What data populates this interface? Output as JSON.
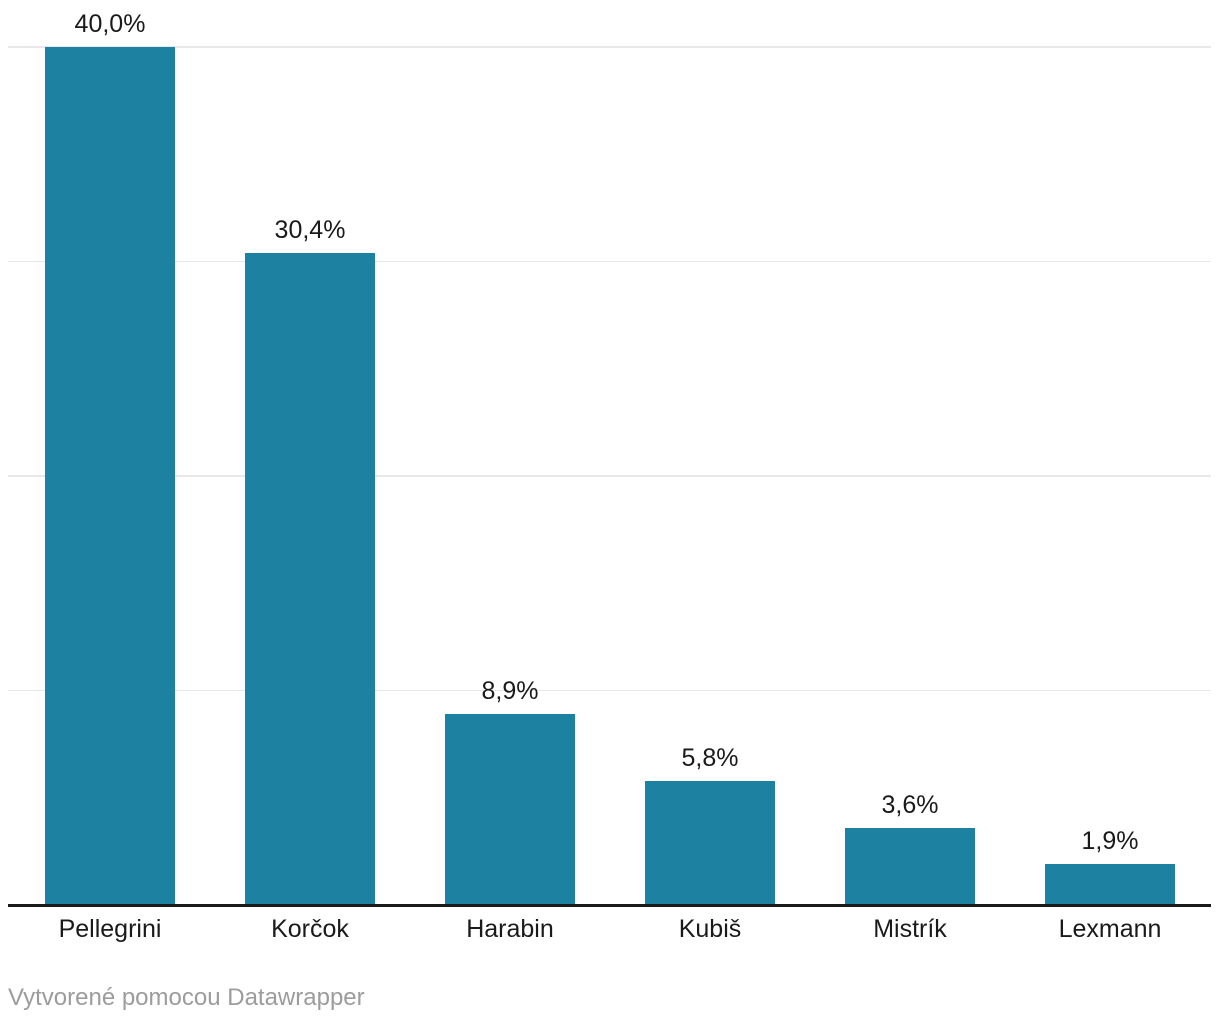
{
  "chart_data": {
    "type": "bar",
    "orientation": "vertical",
    "categories": [
      "Pellegrini",
      "Korčok",
      "Harabin",
      "Kubiš",
      "Mistrík",
      "Lexmann"
    ],
    "values": [
      40.0,
      30.4,
      8.9,
      5.8,
      3.6,
      1.9
    ],
    "value_labels": [
      "40,0%",
      "30,4%",
      "8,9%",
      "5,8%",
      "3,6%",
      "1,9%"
    ],
    "unit": "%",
    "ylim": [
      0,
      42.2
    ],
    "y_gridlines": [
      10,
      20,
      30,
      40
    ],
    "grid": true,
    "y_tick_labels_shown": false,
    "legend": false
  },
  "footer": {
    "attribution_text": "Vytvorené pomocou Datawrapper"
  },
  "colors": {
    "bar": "#1d81a2",
    "gridline": "#e8e8e8",
    "axis": "#1a1a1a",
    "value_label": "#1a1a1a",
    "category_label": "#1a1a1a",
    "footer_text": "#9c9c9c",
    "background": "#ffffff"
  }
}
